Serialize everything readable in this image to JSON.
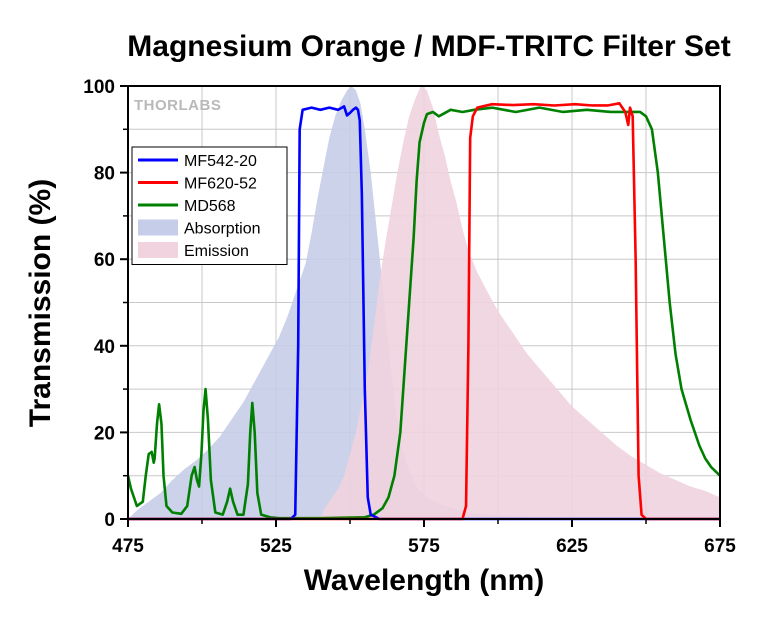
{
  "chart_data": {
    "type": "line",
    "title": "Magnesium Orange / MDF-TRITC Filter Set",
    "xlabel": "Wavelength (nm)",
    "ylabel": "Transmission (%)",
    "xlim": [
      475,
      675
    ],
    "ylim": [
      0,
      100
    ],
    "xticks": [
      475,
      525,
      575,
      625,
      675
    ],
    "yticks": [
      0,
      20,
      40,
      60,
      80,
      100
    ],
    "grid": true,
    "legend_position": "upper-left",
    "watermark": "THORLABS",
    "series": [
      {
        "name": "MF542-20",
        "style": "line",
        "color": "#0000ff",
        "points": [
          [
            475,
            0
          ],
          [
            530,
            0
          ],
          [
            531.5,
            1
          ],
          [
            532.5,
            40
          ],
          [
            533,
            90
          ],
          [
            534,
            94.5
          ],
          [
            537,
            95
          ],
          [
            540,
            94.5
          ],
          [
            543,
            95
          ],
          [
            546,
            94.5
          ],
          [
            548,
            95.3
          ],
          [
            549,
            93.2
          ],
          [
            550,
            93.8
          ],
          [
            551,
            94.5
          ],
          [
            552,
            95
          ],
          [
            552.7,
            94.5
          ],
          [
            553.3,
            92
          ],
          [
            554,
            75
          ],
          [
            555,
            30
          ],
          [
            556,
            5
          ],
          [
            557,
            1
          ],
          [
            560,
            0
          ],
          [
            675,
            0
          ]
        ]
      },
      {
        "name": "MF620-52",
        "style": "line",
        "color": "#ff0000",
        "points": [
          [
            475,
            0
          ],
          [
            588,
            0
          ],
          [
            589.2,
            3
          ],
          [
            590,
            40
          ],
          [
            590.6,
            88
          ],
          [
            591.5,
            93
          ],
          [
            593,
            95
          ],
          [
            598,
            95.8
          ],
          [
            605,
            95.6
          ],
          [
            612,
            95.8
          ],
          [
            619,
            95.5
          ],
          [
            626,
            95.8
          ],
          [
            632,
            95.5
          ],
          [
            637,
            95.5
          ],
          [
            641,
            96
          ],
          [
            643,
            94
          ],
          [
            644,
            91
          ],
          [
            644.6,
            95
          ],
          [
            645.5,
            93
          ],
          [
            646.5,
            60
          ],
          [
            647.5,
            10
          ],
          [
            648.5,
            1
          ],
          [
            650,
            0
          ],
          [
            675,
            0
          ]
        ]
      },
      {
        "name": "MD568",
        "style": "line",
        "color": "#008000",
        "points": [
          [
            475,
            10
          ],
          [
            476,
            7
          ],
          [
            478,
            3
          ],
          [
            480,
            4
          ],
          [
            481,
            10
          ],
          [
            482,
            15
          ],
          [
            483,
            15.5
          ],
          [
            483.7,
            13
          ],
          [
            484,
            14
          ],
          [
            484.8,
            22
          ],
          [
            485.5,
            26.5
          ],
          [
            486.3,
            22
          ],
          [
            487,
            10
          ],
          [
            488,
            3
          ],
          [
            490,
            1.5
          ],
          [
            493,
            1.2
          ],
          [
            495,
            3
          ],
          [
            496.5,
            10
          ],
          [
            497.5,
            12
          ],
          [
            498.3,
            9
          ],
          [
            499,
            7.5
          ],
          [
            499.8,
            15
          ],
          [
            500.5,
            25
          ],
          [
            501.2,
            30
          ],
          [
            502,
            23
          ],
          [
            503,
            9
          ],
          [
            504.5,
            1.5
          ],
          [
            507,
            1
          ],
          [
            508.5,
            4
          ],
          [
            509.5,
            7
          ],
          [
            510.5,
            4
          ],
          [
            512,
            1
          ],
          [
            514,
            1
          ],
          [
            515.5,
            8
          ],
          [
            516.3,
            20
          ],
          [
            517,
            26.8
          ],
          [
            517.8,
            20
          ],
          [
            518.7,
            6
          ],
          [
            520,
            1
          ],
          [
            523,
            0.4
          ],
          [
            526,
            0.2
          ],
          [
            540,
            0.2
          ],
          [
            555,
            0.4
          ],
          [
            558,
            1
          ],
          [
            561,
            2.5
          ],
          [
            563,
            5
          ],
          [
            565,
            10
          ],
          [
            567,
            20
          ],
          [
            568.5,
            35
          ],
          [
            570,
            50
          ],
          [
            571.5,
            65
          ],
          [
            572.5,
            78
          ],
          [
            573.5,
            87
          ],
          [
            575,
            91.5
          ],
          [
            576,
            93.5
          ],
          [
            578,
            94
          ],
          [
            580,
            93
          ],
          [
            584,
            94.5
          ],
          [
            588,
            94
          ],
          [
            592,
            94.5
          ],
          [
            598,
            95
          ],
          [
            606,
            94
          ],
          [
            614,
            95
          ],
          [
            622,
            94
          ],
          [
            630,
            94.5
          ],
          [
            638,
            94
          ],
          [
            644,
            94
          ],
          [
            648,
            94
          ],
          [
            650,
            93
          ],
          [
            652,
            90
          ],
          [
            654,
            80
          ],
          [
            656,
            65
          ],
          [
            658,
            50
          ],
          [
            660,
            38
          ],
          [
            662,
            30
          ],
          [
            665,
            23
          ],
          [
            668,
            17
          ],
          [
            670,
            14
          ],
          [
            672,
            12
          ],
          [
            675,
            10
          ]
        ]
      },
      {
        "name": "Absorption",
        "style": "area",
        "color": "#c5cde8",
        "points": [
          [
            475,
            0
          ],
          [
            478,
            2
          ],
          [
            482,
            4
          ],
          [
            486,
            6
          ],
          [
            490,
            9
          ],
          [
            494,
            11.5
          ],
          [
            498,
            13.5
          ],
          [
            502,
            16
          ],
          [
            506,
            19
          ],
          [
            510,
            23
          ],
          [
            514,
            27
          ],
          [
            518,
            32
          ],
          [
            522,
            37
          ],
          [
            526,
            42
          ],
          [
            529,
            47
          ],
          [
            532,
            53
          ],
          [
            535,
            59
          ],
          [
            537,
            66
          ],
          [
            539,
            74
          ],
          [
            541,
            81
          ],
          [
            543,
            88
          ],
          [
            545,
            93
          ],
          [
            547,
            96.5
          ],
          [
            549,
            99
          ],
          [
            550.5,
            100
          ],
          [
            552,
            99
          ],
          [
            553.5,
            96
          ],
          [
            555,
            90
          ],
          [
            557,
            80
          ],
          [
            559,
            67
          ],
          [
            561,
            54
          ],
          [
            563,
            40
          ],
          [
            565,
            28
          ],
          [
            567,
            18
          ],
          [
            570,
            11
          ],
          [
            573,
            7
          ],
          [
            576,
            5
          ],
          [
            580,
            3.5
          ],
          [
            585,
            2.5
          ],
          [
            590,
            1.5
          ],
          [
            600,
            0.8
          ],
          [
            615,
            0.4
          ],
          [
            640,
            0
          ],
          [
            675,
            0
          ]
        ]
      },
      {
        "name": "Emission",
        "style": "area",
        "color": "#f0d3de",
        "points": [
          [
            540,
            0
          ],
          [
            541,
            2
          ],
          [
            543,
            4
          ],
          [
            546,
            7
          ],
          [
            548,
            10
          ],
          [
            550,
            15
          ],
          [
            552,
            20
          ],
          [
            554,
            27
          ],
          [
            556,
            34
          ],
          [
            558,
            44
          ],
          [
            560,
            55
          ],
          [
            562,
            64
          ],
          [
            564,
            72
          ],
          [
            566,
            80
          ],
          [
            568,
            87
          ],
          [
            570,
            93
          ],
          [
            572,
            97
          ],
          [
            574,
            100
          ],
          [
            576,
            99
          ],
          [
            578,
            95
          ],
          [
            580,
            89
          ],
          [
            582,
            84
          ],
          [
            584,
            78
          ],
          [
            586,
            73
          ],
          [
            588,
            67
          ],
          [
            590,
            62
          ],
          [
            593,
            57
          ],
          [
            596,
            53
          ],
          [
            600,
            48
          ],
          [
            605,
            43
          ],
          [
            610,
            38
          ],
          [
            615,
            34
          ],
          [
            620,
            30
          ],
          [
            625,
            26
          ],
          [
            630,
            23
          ],
          [
            635,
            20
          ],
          [
            640,
            17
          ],
          [
            645,
            14.5
          ],
          [
            650,
            12.5
          ],
          [
            655,
            10.5
          ],
          [
            660,
            9
          ],
          [
            665,
            7.5
          ],
          [
            670,
            6.5
          ],
          [
            675,
            5
          ],
          [
            675,
            0
          ]
        ]
      }
    ]
  }
}
